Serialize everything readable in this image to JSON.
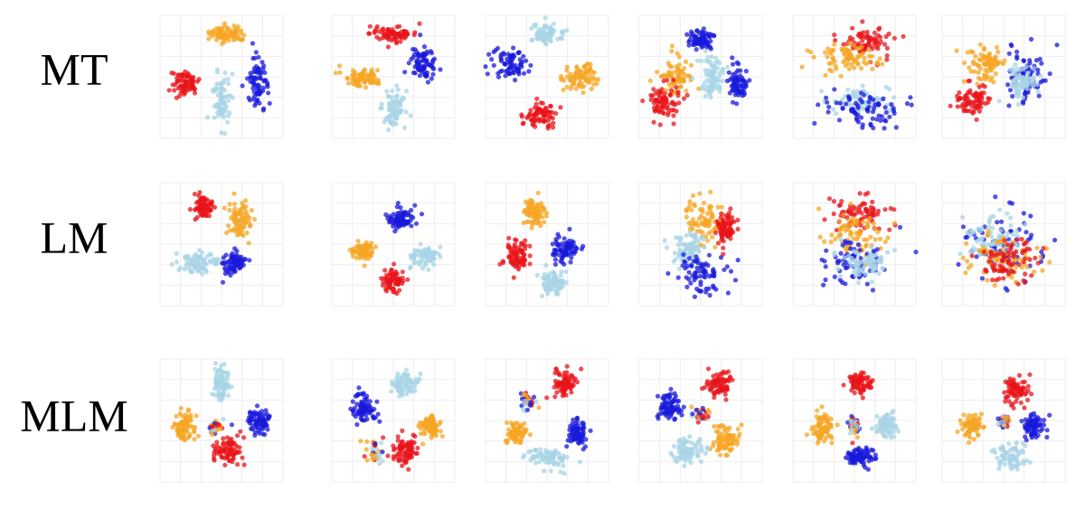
{
  "rows": [
    {
      "label": "MT"
    },
    {
      "label": "LM"
    },
    {
      "label": "MLM"
    }
  ]
}
